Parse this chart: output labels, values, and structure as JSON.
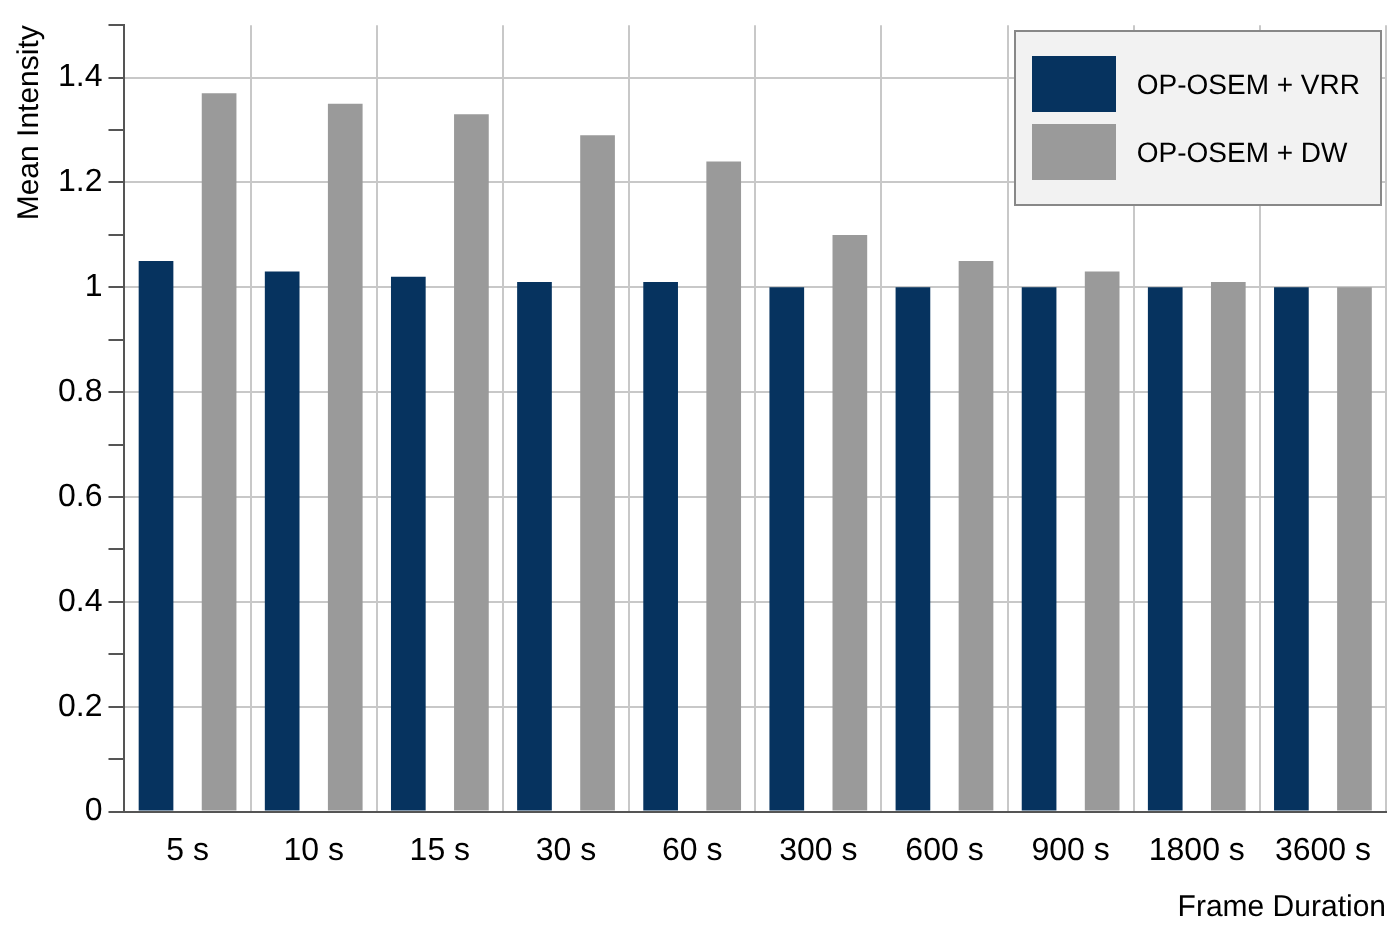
{
  "chart_data": {
    "type": "bar",
    "xlabel": "Frame Duration",
    "ylabel": "Mean Intensity",
    "categories": [
      "5 s",
      "10 s",
      "15 s",
      "30 s",
      "60 s",
      "300 s",
      "600 s",
      "900 s",
      "1800 s",
      "3600 s"
    ],
    "series": [
      {
        "name": "OP-OSEM + VRR",
        "color": "#06335f",
        "values": [
          1.05,
          1.03,
          1.02,
          1.01,
          1.01,
          1.0,
          1.0,
          1.0,
          1.0,
          1.0
        ]
      },
      {
        "name": "OP-OSEM + DW",
        "color": "#9a9a9a",
        "values": [
          1.37,
          1.35,
          1.33,
          1.29,
          1.24,
          1.1,
          1.05,
          1.03,
          1.01,
          1.0
        ]
      }
    ],
    "ylim": [
      0,
      1.5
    ],
    "yticks": [
      0,
      {
        "value": 0.1,
        "label": null
      },
      0.2,
      {
        "value": 0.3,
        "label": null
      },
      0.4,
      {
        "value": 0.5,
        "label": null
      },
      0.6,
      {
        "value": 0.7,
        "label": null
      },
      0.8,
      {
        "value": 0.9,
        "label": null
      },
      1,
      {
        "value": 1.1,
        "label": null
      },
      1.2,
      {
        "value": 1.3,
        "label": null
      },
      1.4,
      {
        "value": 1.5,
        "label": null
      }
    ],
    "grid": true,
    "legend": "top right"
  }
}
